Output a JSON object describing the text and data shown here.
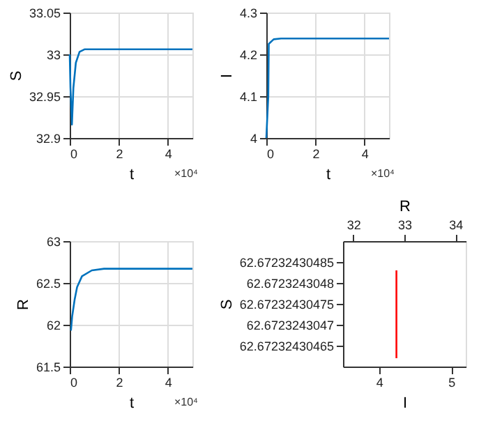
{
  "chart_data": [
    {
      "type": "line",
      "xlabel": "t",
      "ylabel": "S",
      "x": [
        0,
        0.03,
        0.09,
        0.15,
        0.25,
        0.4,
        0.6,
        5
      ],
      "series": [
        {
          "color": "#0072bd",
          "values": [
            33.0,
            32.96,
            32.916,
            32.96,
            32.99,
            33.003,
            33.006,
            33.006
          ]
        }
      ],
      "xlim": [
        0,
        5
      ],
      "xticks": [
        0,
        2,
        4
      ],
      "ylim": [
        32.9,
        33.05
      ],
      "yticks": [
        32.9,
        32.95,
        33,
        33.05
      ],
      "grid": true,
      "annotations": [
        "×10⁴"
      ]
    },
    {
      "type": "line",
      "xlabel": "t",
      "ylabel": "I",
      "x": [
        0,
        0.08,
        0.1,
        0.3,
        0.6,
        5
      ],
      "series": [
        {
          "color": "#0072bd",
          "values": [
            4.0,
            4.1,
            4.225,
            4.236,
            4.238,
            4.238
          ]
        }
      ],
      "xlim": [
        0,
        5
      ],
      "xticks": [
        0,
        2,
        4
      ],
      "ylim": [
        4.0,
        4.3
      ],
      "yticks": [
        4,
        4.1,
        4.2,
        4.3
      ],
      "grid": true,
      "annotations": [
        "×10⁴"
      ]
    },
    {
      "type": "line",
      "xlabel": "t",
      "ylabel": "R",
      "x": [
        0.05,
        0.1,
        0.2,
        0.3,
        0.5,
        0.9,
        1.4,
        5
      ],
      "series": [
        {
          "color": "#0072bd",
          "values": [
            61.93,
            62.1,
            62.3,
            62.45,
            62.58,
            62.65,
            62.67,
            62.67
          ]
        }
      ],
      "xlim": [
        0,
        5
      ],
      "xticks": [
        0,
        2,
        4
      ],
      "ylim": [
        61.5,
        63
      ],
      "yticks": [
        61.5,
        62,
        62.5,
        63
      ],
      "grid": true,
      "annotations": [
        "×10⁴"
      ]
    },
    {
      "type": "line",
      "xlabel": "I",
      "ylabel": "S",
      "x2label": "R",
      "x": [
        4.24,
        4.24
      ],
      "series": [
        {
          "color": "#ff0000",
          "values": [
            62.67232430462,
            62.67232430483
          ]
        }
      ],
      "xlim": [
        3.5,
        5.2
      ],
      "xticks": [
        4,
        5
      ],
      "x2lim": [
        31.8,
        34.2
      ],
      "x2ticks": [
        32,
        33,
        34
      ],
      "ylim": [
        62.6723243046,
        62.6723243049
      ],
      "yticks": [
        {
          "value": 62.67232430465,
          "label": "62.67232430465"
        },
        {
          "value": 62.6723243047,
          "label": "62.6723243047"
        },
        {
          "value": 62.67232430475,
          "label": "62.67232430475"
        },
        {
          "value": 62.6723243048,
          "label": "62.6723243048"
        },
        {
          "value": 62.67232430485,
          "label": "62.67232430485"
        }
      ],
      "grid": false
    }
  ]
}
